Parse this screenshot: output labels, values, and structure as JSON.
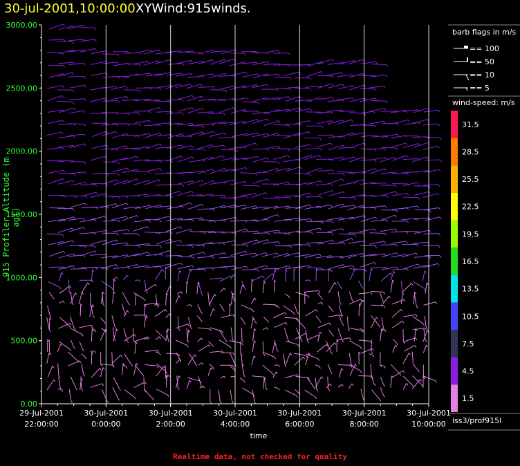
{
  "title": {
    "date": "30-jul-2001,10:00:00",
    "product": "XYWind:915winds."
  },
  "footer": "Realtime data, not checked for quality",
  "source": "iss3/prof915l",
  "chart_data": {
    "type": "wind-barb time-height plot",
    "ylabel": "915 Profiler Altitude (m agl)",
    "xlabel": "time",
    "ylim": [
      0,
      3000
    ],
    "yticks": [
      "0.00",
      "500.00",
      "1000.00",
      "1500.00",
      "2000.00",
      "2500.00",
      "3000.00"
    ],
    "yticks_values": [
      0,
      500,
      1000,
      1500,
      2000,
      2500,
      3000
    ],
    "xticks": [
      {
        "date": "29-Jul-2001",
        "time": "22:00:00"
      },
      {
        "date": "30-Jul-2001",
        "time": "0:00:00"
      },
      {
        "date": "30-Jul-2001",
        "time": "2:00:00"
      },
      {
        "date": "30-Jul-2001",
        "time": "4:00:00"
      },
      {
        "date": "30-Jul-2001",
        "time": "6:00:00"
      },
      {
        "date": "30-Jul-2001",
        "time": "8:00:00"
      },
      {
        "date": "30-Jul-2001",
        "time": "10:00:00"
      }
    ],
    "xticks_hours": [
      22,
      24,
      26,
      28,
      30,
      32,
      34
    ],
    "xlim_hours": [
      22,
      34
    ],
    "grid": "vertical lines at each time tick",
    "barb_legend": {
      "title": "barb flags in m/s",
      "entries": [
        "== 100",
        "== 50",
        "== 10",
        "== 5"
      ]
    },
    "color_legend": {
      "title": "wind-speed: m/s",
      "entries": [
        {
          "label": "31.5",
          "color": "#ff1a4d"
        },
        {
          "label": "28.5",
          "color": "#ff7a00"
        },
        {
          "label": "25.5",
          "color": "#ffb000"
        },
        {
          "label": "22.5",
          "color": "#ffff00"
        },
        {
          "label": "19.5",
          "color": "#99ff00"
        },
        {
          "label": "16.5",
          "color": "#22dd22"
        },
        {
          "label": "13.5",
          "color": "#00e5e5"
        },
        {
          "label": "10.5",
          "color": "#4444ff"
        },
        {
          "label": "7.5",
          "color": "#333355"
        },
        {
          "label": "4.5",
          "color": "#8a1ee6"
        },
        {
          "label": "1.5",
          "color": "#e680e6"
        }
      ]
    }
  }
}
